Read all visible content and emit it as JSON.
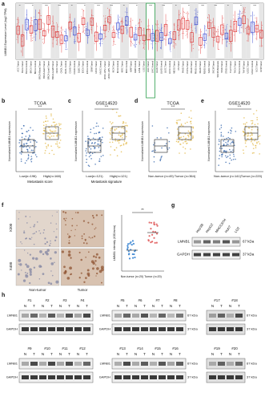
{
  "panels": {
    "a": {
      "label": "a",
      "y_label": "LMNB1 Expression Level (log2 TPM)",
      "categories": [
        "ACC.Tumor",
        "BLCA.Tumor",
        "BLCA.Normal",
        "BRCA.Tumor",
        "BRCA.Normal",
        "BRCA-Basal.Tumor",
        "BRCA-Her2.Tumor",
        "BRCA-LumA.Tumor",
        "BRCA-LumB.Tumor",
        "CESC.Tumor",
        "CHOL.Tumor",
        "CHOL.Normal",
        "COAD.Tumor",
        "COAD.Normal",
        "DLBC.Tumor",
        "ESCA.Tumor",
        "ESCA.Normal",
        "GBM.Tumor",
        "HNSC.Tumor",
        "HNSC.Normal",
        "HNSC-HPV+.Tumor",
        "HNSC-HPV-.Tumor",
        "KICH.Tumor",
        "KICH.Normal",
        "KIRC.Tumor",
        "KIRC.Normal",
        "KIRP.Tumor",
        "KIRP.Normal",
        "LAML.Tumor",
        "LGG.Tumor",
        "LIHC.Tumor",
        "LIHC.Normal",
        "LUAD.Tumor",
        "LUAD.Normal",
        "LUSC.Tumor",
        "LUSC.Normal",
        "MESO.Tumor",
        "OV.Tumor",
        "PAAD.Tumor",
        "PCPG.Tumor",
        "PRAD.Tumor",
        "PRAD.Normal",
        "READ.Tumor",
        "READ.Normal",
        "SARC.Tumor",
        "SKCM.Tumor",
        "SKCM.Metastasis",
        "STAD.Tumor",
        "STAD.Normal",
        "TGCT.Tumor",
        "THCA.Tumor",
        "THCA.Normal",
        "THYM.Tumor",
        "UCEC.Tumor",
        "UCEC.Normal",
        "UCS.Tumor",
        "UVM.Tumor"
      ],
      "significance": "***"
    },
    "b": {
      "label": "b",
      "title": "TCGA",
      "y_label": "Normalized LMNB1 expression",
      "groups": [
        "Low(n=196)",
        "High(n=168)"
      ],
      "x_label": "Metastasis score",
      "significance": "***"
    },
    "c": {
      "label": "c",
      "title": "GSE14520",
      "y_label": "Normalized LMNB1 expression",
      "groups": [
        "Low(n=121)",
        "High(n=121)"
      ],
      "x_label": "Metastasis signature",
      "significance": "***"
    },
    "d": {
      "label": "d",
      "title": "TCGA",
      "y_label": "Normalized LMNB1 expression",
      "groups": [
        "Non-tumor (n=49)",
        "Tumor (n=364)"
      ],
      "significance": "***"
    },
    "e": {
      "label": "e",
      "title": "GSE14520",
      "y_label": "Normalized LMNB1 expression",
      "groups": [
        "Non-tumor (n=141)",
        "Tumor (n=220)"
      ],
      "significance": "***"
    },
    "f": {
      "label": "f",
      "magnifications": [
        "X200",
        "X400"
      ],
      "groups": [
        "Non-tumor",
        "Tumor"
      ],
      "y_label": "LMNB1 intensity (IOD/area)",
      "plot_groups": [
        "Non-tumor (n=20)",
        "Tumor (n=20)"
      ],
      "significance": "**"
    },
    "g": {
      "label": "g",
      "cell_lines": [
        "Hep3B",
        "HepG2",
        "MHCC97H",
        "Huh7",
        "LO2"
      ],
      "proteins": [
        "LMNB1",
        "GAPDH"
      ],
      "sizes": [
        "67 kDa",
        "37 kDa"
      ]
    },
    "h": {
      "label": "h",
      "lanes": [
        "N",
        "T"
      ],
      "proteins": [
        "LMNB1",
        "GAPDH"
      ],
      "sizes": [
        "67 kDa",
        "37 kDa"
      ],
      "blocks": [
        [
          "#1",
          "#2",
          "#3",
          "#4"
        ],
        [
          "#5",
          "#6",
          "#7",
          "#8"
        ],
        [
          "#17",
          "#18"
        ],
        [
          "#9",
          "#10",
          "#11",
          "#12"
        ],
        [
          "#13",
          "#14",
          "#15",
          "#16"
        ],
        [
          "#19",
          "#20"
        ]
      ]
    }
  }
}
